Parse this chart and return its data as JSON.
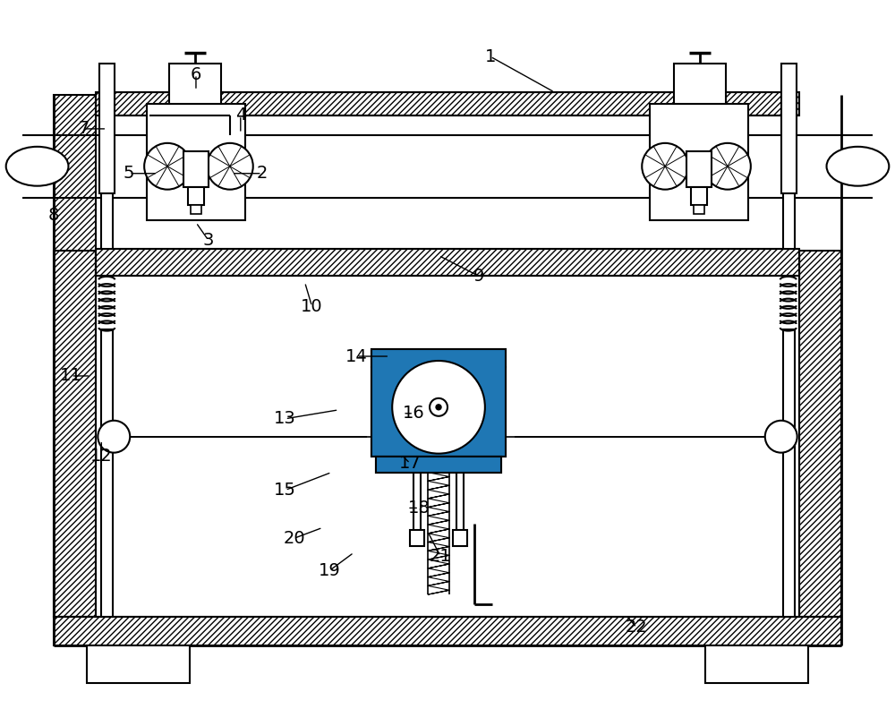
{
  "bg_color": "#ffffff",
  "figsize": [
    10.0,
    8.11
  ],
  "dpi": 100,
  "labels_data": [
    [
      "1",
      548,
      62,
      620,
      102
    ],
    [
      "2",
      292,
      193,
      258,
      193
    ],
    [
      "3",
      232,
      268,
      218,
      248
    ],
    [
      "4",
      268,
      128,
      268,
      148
    ],
    [
      "5",
      143,
      193,
      175,
      193
    ],
    [
      "6",
      218,
      82,
      218,
      100
    ],
    [
      "7",
      92,
      143,
      118,
      143
    ],
    [
      "8",
      58,
      240,
      60,
      210
    ],
    [
      "9",
      535,
      308,
      490,
      285
    ],
    [
      "10",
      348,
      342,
      340,
      315
    ],
    [
      "11",
      78,
      420,
      100,
      420
    ],
    [
      "12",
      112,
      510,
      112,
      492
    ],
    [
      "13",
      318,
      468,
      378,
      458
    ],
    [
      "14",
      398,
      398,
      435,
      398
    ],
    [
      "15",
      318,
      548,
      370,
      528
    ],
    [
      "16",
      462,
      462,
      450,
      462
    ],
    [
      "17",
      458,
      518,
      448,
      508
    ],
    [
      "18",
      468,
      568,
      455,
      568
    ],
    [
      "19",
      368,
      638,
      395,
      618
    ],
    [
      "20",
      328,
      602,
      360,
      590
    ],
    [
      "21",
      492,
      622,
      478,
      595
    ],
    [
      "22",
      712,
      702,
      700,
      688
    ]
  ]
}
